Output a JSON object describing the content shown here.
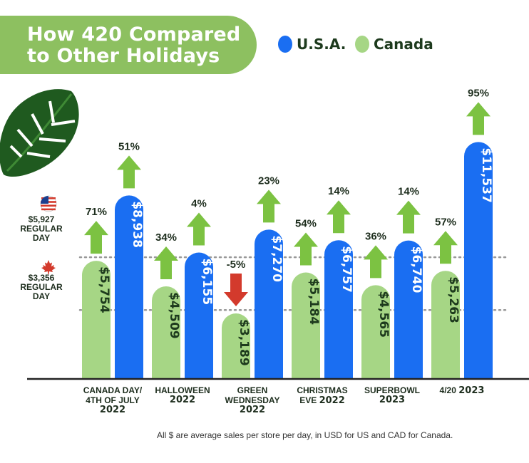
{
  "title": "How 420 Compared to Other Holidays",
  "legend": {
    "usa": "U.S.A.",
    "canada": "Canada"
  },
  "colors": {
    "usa": "#1a6ef2",
    "canada": "#a6d685",
    "up_arrow": "#7cc242",
    "down_arrow": "#d33a2c",
    "title_bg": "#8dc060"
  },
  "reference_lines": [
    {
      "country": "USA",
      "value": 5927,
      "value_label": "$5,927",
      "text": "REGULAR DAY"
    },
    {
      "country": "Canada",
      "value": 3356,
      "value_label": "$3,356",
      "text": "REGULAR DAY"
    }
  ],
  "footnote": "All $ are average sales per store per day, in USD for US and CAD for Canada.",
  "chart_data": {
    "type": "bar",
    "categories": [
      {
        "line1": "CANADA DAY/",
        "line2": "4TH OF JULY",
        "year": "2022"
      },
      {
        "line1": "HALLOWEEN",
        "line2": "",
        "year": "2022"
      },
      {
        "line1": "GREEN",
        "line2": "WEDNESDAY",
        "year": "2022"
      },
      {
        "line1": "CHRISTMAS",
        "line2": "EVE",
        "year": "2022"
      },
      {
        "line1": "SUPERBOWL",
        "line2": "",
        "year": "2023"
      },
      {
        "line1": "4/20",
        "line2": "",
        "year": "2023"
      }
    ],
    "series": [
      {
        "name": "Canada",
        "values": [
          5754,
          4509,
          3189,
          5184,
          4565,
          5263
        ],
        "labels": [
          "$5,754",
          "$4,509",
          "$3,189",
          "$5,184",
          "$4,565",
          "$5,263"
        ],
        "changes": [
          "71%",
          "34%",
          "-5%",
          "54%",
          "36%",
          "57%"
        ]
      },
      {
        "name": "U.S.A.",
        "values": [
          8938,
          6155,
          7270,
          6757,
          6740,
          11537
        ],
        "labels": [
          "$8,938",
          "$6,155",
          "$7,270",
          "$6,757",
          "$6,740",
          "$11,537"
        ],
        "changes": [
          "51%",
          "4%",
          "23%",
          "14%",
          "14%",
          "95%"
        ]
      }
    ]
  }
}
